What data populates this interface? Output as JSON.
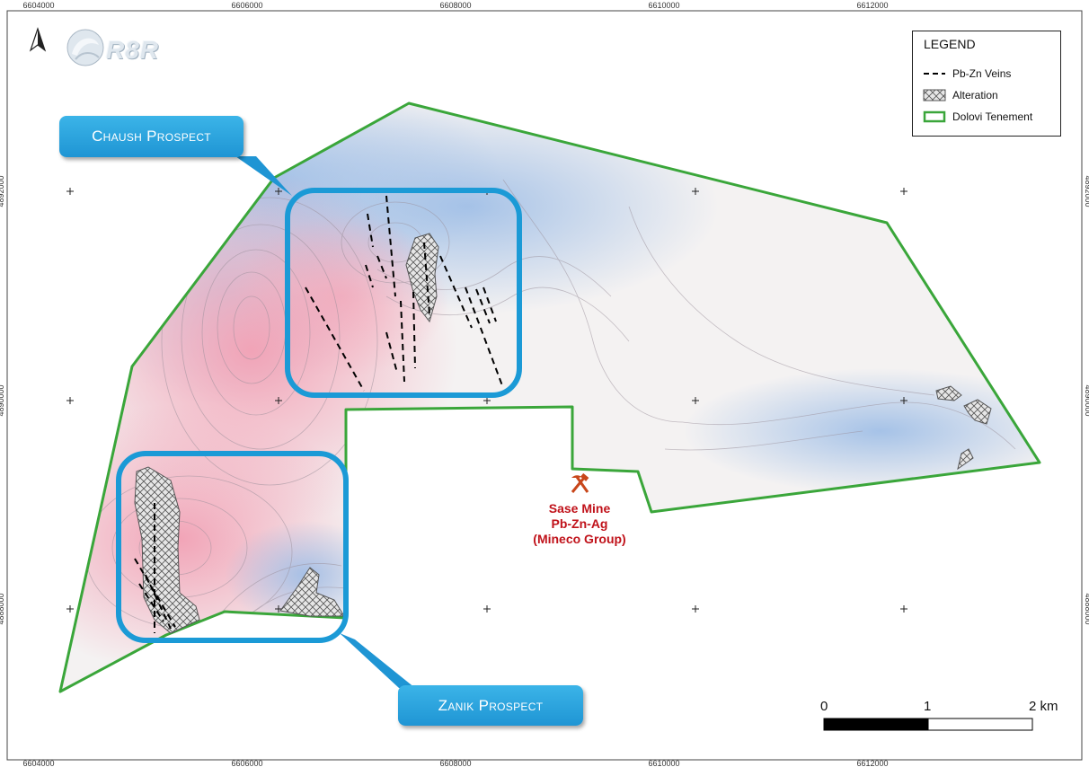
{
  "grid": {
    "x_labels": [
      "6604000",
      "6606000",
      "6608000",
      "6610000",
      "6612000"
    ],
    "y_labels": [
      "4892000",
      "4890000",
      "4888000"
    ]
  },
  "logo": {
    "text": "R8R"
  },
  "legend": {
    "title": "LEGEND",
    "items": [
      {
        "label": "Pb-Zn Veins",
        "symbol": "dashed-line",
        "color": "#000000"
      },
      {
        "label": "Alteration",
        "symbol": "crosshatch",
        "color": "#666666"
      },
      {
        "label": "Dolovi Tenement",
        "symbol": "outline-box",
        "color": "#3aa63a"
      }
    ]
  },
  "callouts": {
    "chaush": {
      "label": "Chaush Prospect"
    },
    "zanik": {
      "label": "Zanik Prospect"
    }
  },
  "mine": {
    "icon": "pick-hammer-icon",
    "name": "Sase Mine",
    "commodity": "Pb-Zn-Ag",
    "owner": "(Mineco Group)",
    "color": "#c0121a"
  },
  "scale_bar": {
    "labels": [
      "0",
      "1",
      "2 km"
    ]
  },
  "colors": {
    "tenement": "#3aa63a",
    "highlight": "#1b9ad6",
    "anomaly_high": "#f0a0b0",
    "anomaly_low": "#a8c4e8"
  }
}
